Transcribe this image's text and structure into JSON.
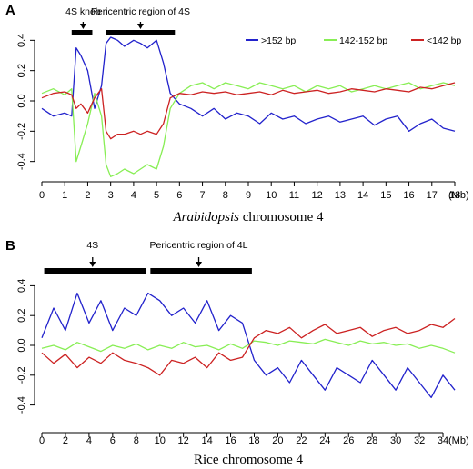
{
  "chart_data": [
    {
      "panel": "A",
      "type": "line",
      "xlabel_italic": "Arabidopsis",
      "xlabel_rest": " chromosome 4",
      "xunit": "(Mb)",
      "xlim": [
        0,
        18
      ],
      "ylim": [
        -0.45,
        0.45
      ],
      "xticks": [
        0,
        1,
        2,
        3,
        4,
        5,
        6,
        7,
        8,
        9,
        10,
        11,
        12,
        13,
        14,
        15,
        16,
        17,
        18
      ],
      "yticks": [
        0.4,
        0.2,
        0.0,
        -0.2,
        -0.4
      ],
      "ytick_labels": [
        "0.4",
        "0.2",
        "0.0",
        "-0.2",
        "-0.4"
      ],
      "legend_position": "top-right",
      "annotations": [
        {
          "label": "4S knob",
          "x_start": 1.3,
          "x_end": 2.2,
          "arrow_x": 1.8
        },
        {
          "label": "Pericentric region of 4S",
          "x_start": 2.8,
          "x_end": 5.8,
          "arrow_x": 4.3
        }
      ],
      "series": [
        {
          "name": ">152 bp",
          "color": "#2222cc",
          "x": [
            0,
            0.5,
            1,
            1.3,
            1.5,
            1.7,
            2,
            2.3,
            2.6,
            2.8,
            3,
            3.3,
            3.6,
            4,
            4.3,
            4.6,
            5,
            5.3,
            5.6,
            6,
            6.5,
            7,
            7.5,
            8,
            8.5,
            9,
            9.5,
            10,
            10.5,
            11,
            11.5,
            12,
            12.5,
            13,
            13.5,
            14,
            14.5,
            15,
            15.5,
            16,
            16.5,
            17,
            17.5,
            18
          ],
          "y": [
            -0.05,
            -0.1,
            -0.08,
            -0.1,
            0.35,
            0.3,
            0.2,
            -0.05,
            0.1,
            0.38,
            0.42,
            0.4,
            0.36,
            0.4,
            0.38,
            0.35,
            0.4,
            0.25,
            0.05,
            -0.02,
            -0.05,
            -0.1,
            -0.05,
            -0.12,
            -0.08,
            -0.1,
            -0.15,
            -0.08,
            -0.12,
            -0.1,
            -0.15,
            -0.12,
            -0.1,
            -0.14,
            -0.12,
            -0.1,
            -0.16,
            -0.12,
            -0.1,
            -0.2,
            -0.15,
            -0.12,
            -0.18,
            -0.2
          ]
        },
        {
          "name": "142-152 bp",
          "color": "#88ee55",
          "x": [
            0,
            0.5,
            1,
            1.3,
            1.5,
            1.7,
            2,
            2.3,
            2.6,
            2.8,
            3,
            3.3,
            3.6,
            4,
            4.3,
            4.6,
            5,
            5.3,
            5.6,
            6,
            6.5,
            7,
            7.5,
            8,
            8.5,
            9,
            9.5,
            10,
            10.5,
            11,
            11.5,
            12,
            12.5,
            13,
            13.5,
            14,
            14.5,
            15,
            15.5,
            16,
            16.5,
            17,
            17.5,
            18
          ],
          "y": [
            0.05,
            0.08,
            0.04,
            0.08,
            -0.4,
            -0.3,
            -0.15,
            0.05,
            -0.1,
            -0.42,
            -0.5,
            -0.48,
            -0.45,
            -0.48,
            -0.45,
            -0.42,
            -0.45,
            -0.3,
            -0.05,
            0.05,
            0.1,
            0.12,
            0.08,
            0.12,
            0.1,
            0.08,
            0.12,
            0.1,
            0.08,
            0.1,
            0.06,
            0.1,
            0.08,
            0.1,
            0.06,
            0.08,
            0.1,
            0.08,
            0.1,
            0.12,
            0.08,
            0.1,
            0.12,
            0.1
          ]
        },
        {
          "name": "<142 bp",
          "color": "#cc2222",
          "x": [
            0,
            0.5,
            1,
            1.3,
            1.5,
            1.7,
            2,
            2.3,
            2.6,
            2.8,
            3,
            3.3,
            3.6,
            4,
            4.3,
            4.6,
            5,
            5.3,
            5.6,
            6,
            6.5,
            7,
            7.5,
            8,
            8.5,
            9,
            9.5,
            10,
            10.5,
            11,
            11.5,
            12,
            12.5,
            13,
            13.5,
            14,
            14.5,
            15,
            15.5,
            16,
            16.5,
            17,
            17.5,
            18
          ],
          "y": [
            0.02,
            0.05,
            0.06,
            0.04,
            -0.05,
            -0.02,
            -0.08,
            0.02,
            0.08,
            -0.2,
            -0.25,
            -0.22,
            -0.22,
            -0.2,
            -0.22,
            -0.2,
            -0.22,
            -0.15,
            0.02,
            0.05,
            0.04,
            0.06,
            0.05,
            0.06,
            0.04,
            0.05,
            0.06,
            0.04,
            0.07,
            0.05,
            0.06,
            0.07,
            0.05,
            0.06,
            0.08,
            0.07,
            0.06,
            0.08,
            0.07,
            0.06,
            0.09,
            0.08,
            0.1,
            0.12
          ]
        }
      ]
    },
    {
      "panel": "B",
      "type": "line",
      "xlabel": "Rice chromosome 4",
      "xunit": "(Mb)",
      "xlim": [
        0,
        35
      ],
      "ylim": [
        -0.5,
        0.5
      ],
      "xticks": [
        0,
        2,
        4,
        6,
        8,
        10,
        12,
        14,
        16,
        18,
        20,
        22,
        24,
        26,
        28,
        30,
        32,
        34
      ],
      "yticks": [
        0.4,
        0.2,
        0.0,
        -0.2,
        -0.4
      ],
      "ytick_labels": [
        "0.4",
        "0.2",
        "0.0",
        "-0.2",
        "-0.4"
      ],
      "annotations": [
        {
          "label": "4S",
          "x_start": 0.2,
          "x_end": 8.8,
          "arrow_x": 4.3
        },
        {
          "label": "Pericentric region of 4L",
          "x_start": 9.2,
          "x_end": 17.8,
          "arrow_x": 13.3
        }
      ],
      "series": [
        {
          "name": ">152 bp",
          "color": "#2222cc",
          "x": [
            0,
            1,
            2,
            3,
            4,
            5,
            6,
            7,
            8,
            9,
            10,
            11,
            12,
            13,
            14,
            15,
            16,
            17,
            18,
            19,
            20,
            21,
            22,
            23,
            24,
            25,
            26,
            27,
            28,
            29,
            30,
            31,
            32,
            33,
            34,
            35
          ],
          "y": [
            0.05,
            0.25,
            0.1,
            0.35,
            0.15,
            0.3,
            0.1,
            0.25,
            0.2,
            0.35,
            0.3,
            0.2,
            0.25,
            0.15,
            0.3,
            0.1,
            0.2,
            0.15,
            -0.1,
            -0.2,
            -0.15,
            -0.25,
            -0.1,
            -0.2,
            -0.3,
            -0.15,
            -0.2,
            -0.25,
            -0.1,
            -0.2,
            -0.3,
            -0.15,
            -0.25,
            -0.35,
            -0.2,
            -0.3
          ]
        },
        {
          "name": "142-152 bp",
          "color": "#88ee55",
          "x": [
            0,
            1,
            2,
            3,
            4,
            5,
            6,
            7,
            8,
            9,
            10,
            11,
            12,
            13,
            14,
            15,
            16,
            17,
            18,
            19,
            20,
            21,
            22,
            23,
            24,
            25,
            26,
            27,
            28,
            29,
            30,
            31,
            32,
            33,
            34,
            35
          ],
          "y": [
            -0.02,
            0.0,
            -0.03,
            0.02,
            -0.01,
            -0.04,
            0.0,
            -0.02,
            0.01,
            -0.03,
            0.0,
            -0.02,
            0.02,
            -0.01,
            0.0,
            -0.03,
            0.01,
            -0.02,
            0.03,
            0.02,
            0.0,
            0.03,
            0.02,
            0.01,
            0.04,
            0.02,
            0.0,
            0.03,
            0.01,
            0.02,
            0.0,
            0.01,
            -0.02,
            0.0,
            -0.02,
            -0.05
          ]
        },
        {
          "name": "<142 bp",
          "color": "#cc2222",
          "x": [
            0,
            1,
            2,
            3,
            4,
            5,
            6,
            7,
            8,
            9,
            10,
            11,
            12,
            13,
            14,
            15,
            16,
            17,
            18,
            19,
            20,
            21,
            22,
            23,
            24,
            25,
            26,
            27,
            28,
            29,
            30,
            31,
            32,
            33,
            34,
            35
          ],
          "y": [
            -0.05,
            -0.12,
            -0.06,
            -0.15,
            -0.08,
            -0.12,
            -0.05,
            -0.1,
            -0.12,
            -0.15,
            -0.2,
            -0.1,
            -0.12,
            -0.08,
            -0.15,
            -0.05,
            -0.1,
            -0.08,
            0.05,
            0.1,
            0.08,
            0.12,
            0.05,
            0.1,
            0.14,
            0.08,
            0.1,
            0.12,
            0.06,
            0.1,
            0.12,
            0.08,
            0.1,
            0.14,
            0.12,
            0.18
          ]
        }
      ]
    }
  ]
}
